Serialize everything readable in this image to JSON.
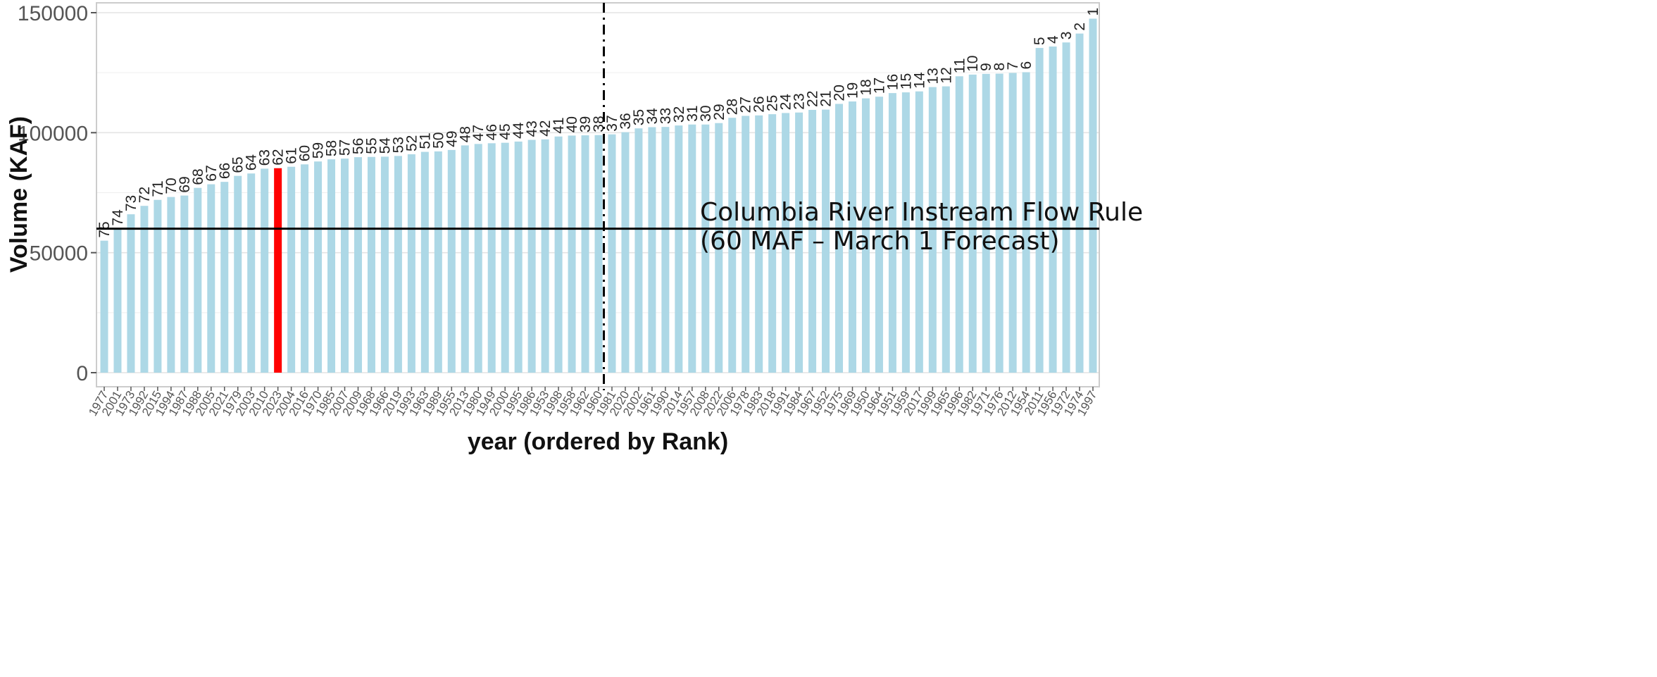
{
  "chart_data": {
    "type": "bar",
    "xlabel": "year (ordered by Rank)",
    "ylabel": "Volume (KAF)",
    "ylim": [
      0,
      152000
    ],
    "yticks": [
      "0",
      "50000",
      "100000",
      "150000"
    ],
    "grid": true,
    "colors": {
      "bar": "#add8e6",
      "highlight": "#ff0000",
      "line": "#000000"
    },
    "highlight_category": "2023",
    "reference_line": {
      "value": 60000,
      "label_line1": "Columbia River Instream Flow Rule",
      "label_line2": "(60 MAF – March 1 Forecast)"
    },
    "vertical_marker": {
      "category": "1960",
      "style": "dash-dot"
    },
    "categories": [
      "1977",
      "2001",
      "1973",
      "1992",
      "2015",
      "1994",
      "1987",
      "1988",
      "2005",
      "2021",
      "1979",
      "2003",
      "2010",
      "2023",
      "2004",
      "2016",
      "1970",
      "1985",
      "2007",
      "2009",
      "1968",
      "1966",
      "2019",
      "1993",
      "1963",
      "1989",
      "1955",
      "2013",
      "1980",
      "1949",
      "2000",
      "1995",
      "1986",
      "1953",
      "1998",
      "1958",
      "1962",
      "1960",
      "1981",
      "2020",
      "2002",
      "1961",
      "1990",
      "2014",
      "1957",
      "2008",
      "2022",
      "2006",
      "1978",
      "1983",
      "2018",
      "1991",
      "1984",
      "1967",
      "1952",
      "1975",
      "1969",
      "1950",
      "1964",
      "1951",
      "1959",
      "2017",
      "1999",
      "1965",
      "1996",
      "1982",
      "1971",
      "1976",
      "2012",
      "1954",
      "2011",
      "1956",
      "1972",
      "1974",
      "1997"
    ],
    "ranks": [
      "75",
      "74",
      "73",
      "72",
      "71",
      "70",
      "69",
      "68",
      "67",
      "66",
      "65",
      "64",
      "63",
      "62",
      "61",
      "60",
      "59",
      "58",
      "57",
      "56",
      "55",
      "54",
      "53",
      "52",
      "51",
      "50",
      "49",
      "48",
      "47",
      "46",
      "45",
      "44",
      "43",
      "42",
      "41",
      "40",
      "39",
      "38",
      "37",
      "36",
      "35",
      "34",
      "33",
      "32",
      "31",
      "30",
      "29",
      "28",
      "27",
      "26",
      "25",
      "24",
      "23",
      "22",
      "21",
      "20",
      "19",
      "18",
      "17",
      "16",
      "15",
      "14",
      "13",
      "12",
      "11",
      "10",
      "9",
      "8",
      "7",
      "6",
      "5",
      "4",
      "3",
      "2",
      "1"
    ],
    "values": [
      55000,
      60000,
      66000,
      69500,
      72000,
      73200,
      73800,
      77000,
      78500,
      79500,
      82000,
      83000,
      85000,
      85200,
      85800,
      86800,
      88000,
      88900,
      89200,
      89800,
      89900,
      90000,
      90300,
      91000,
      92000,
      92200,
      92800,
      94700,
      95300,
      95600,
      95800,
      96300,
      97000,
      97200,
      98400,
      98800,
      98900,
      99000,
      99300,
      100200,
      101800,
      102300,
      102400,
      103000,
      103400,
      103400,
      104000,
      106200,
      107000,
      107200,
      107700,
      108200,
      108400,
      109500,
      109600,
      112000,
      113000,
      114300,
      115000,
      116500,
      116800,
      117200,
      119000,
      119300,
      123500,
      124200,
      124500,
      124600,
      124900,
      125200,
      135300,
      135900,
      137600,
      141300,
      147500
    ]
  }
}
